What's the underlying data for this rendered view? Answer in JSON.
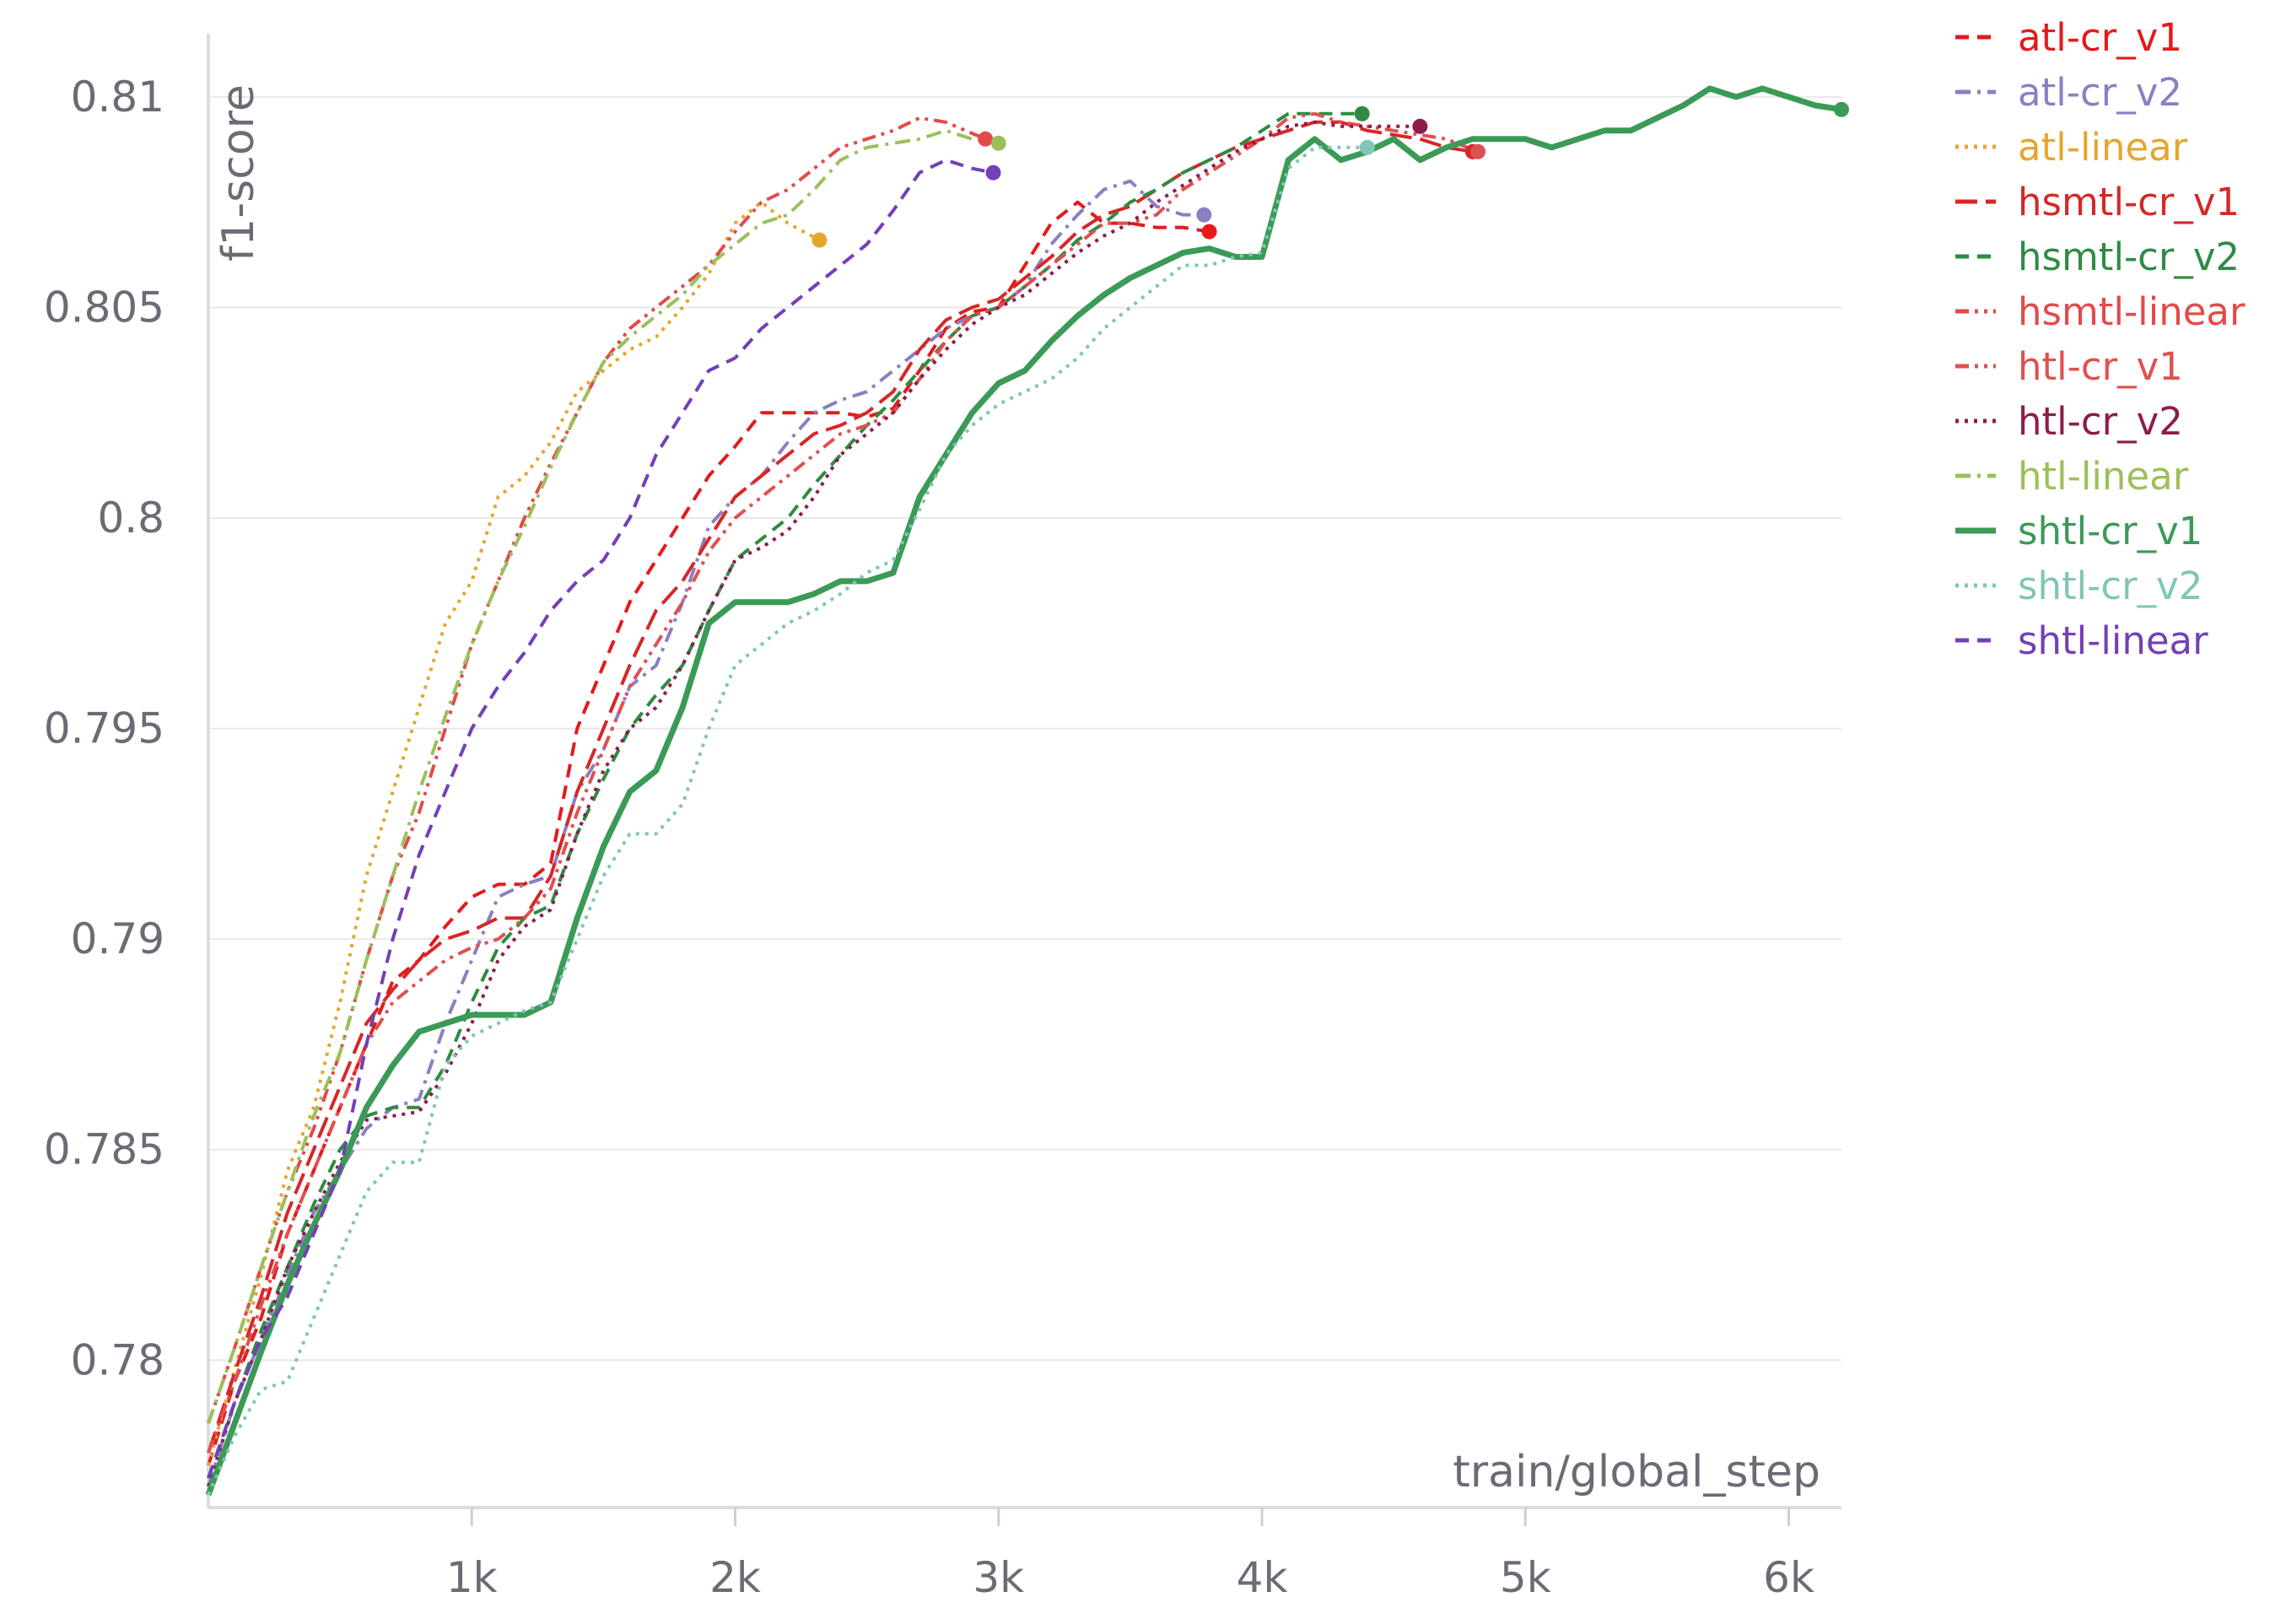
{
  "chart_data": {
    "type": "line",
    "xlabel": "train/global_step",
    "ylabel": "f1-score",
    "xlim": [
      0,
      6200
    ],
    "ylim": [
      0.7765,
      0.8115
    ],
    "grid": true,
    "legend_position": "top-right, outside plot",
    "x_ticks": [
      {
        "value": 1000,
        "label": "1k"
      },
      {
        "value": 2000,
        "label": "2k"
      },
      {
        "value": 3000,
        "label": "3k"
      },
      {
        "value": 4000,
        "label": "4k"
      },
      {
        "value": 5000,
        "label": "5k"
      },
      {
        "value": 6000,
        "label": "6k"
      }
    ],
    "y_ticks": [
      {
        "value": 0.78,
        "label": "0.78"
      },
      {
        "value": 0.785,
        "label": "0.785"
      },
      {
        "value": 0.79,
        "label": "0.79"
      },
      {
        "value": 0.795,
        "label": "0.795"
      },
      {
        "value": 0.8,
        "label": "0.8"
      },
      {
        "value": 0.805,
        "label": "0.805"
      },
      {
        "value": 0.81,
        "label": "0.81"
      }
    ],
    "series": [
      {
        "name": "atl-cr_v1",
        "color": "#e41a1c",
        "dash": "dashed",
        "x": [
          0,
          100,
          200,
          300,
          400,
          500,
          600,
          700,
          800,
          900,
          1000,
          1100,
          1200,
          1300,
          1400,
          1500,
          1600,
          1700,
          1800,
          1900,
          2000,
          2100,
          2200,
          2300,
          2400,
          2500,
          2600,
          2700,
          2800,
          2900,
          3000,
          3100,
          3200,
          3300,
          3400,
          3500,
          3600,
          3700,
          3800
        ],
        "y": [
          0.7775,
          0.7795,
          0.781,
          0.783,
          0.7845,
          0.786,
          0.7875,
          0.789,
          0.7895,
          0.7903,
          0.791,
          0.7913,
          0.7913,
          0.7918,
          0.795,
          0.7965,
          0.798,
          0.799,
          0.8,
          0.801,
          0.8017,
          0.8025,
          0.8025,
          0.8025,
          0.8025,
          0.8024,
          0.8026,
          0.8035,
          0.8045,
          0.8049,
          0.805,
          0.806,
          0.807,
          0.8075,
          0.807,
          0.807,
          0.8069,
          0.8069,
          0.8068
        ]
      },
      {
        "name": "atl-cr_v2",
        "color": "#8b7fc4",
        "dash": "dashdot",
        "x": [
          0,
          100,
          200,
          300,
          400,
          500,
          600,
          700,
          800,
          900,
          1000,
          1100,
          1200,
          1300,
          1400,
          1500,
          1600,
          1700,
          1800,
          1900,
          2000,
          2100,
          2200,
          2300,
          2400,
          2500,
          2600,
          2700,
          2800,
          2900,
          3000,
          3100,
          3200,
          3300,
          3400,
          3500,
          3600,
          3700,
          3780
        ],
        "y": [
          0.777,
          0.779,
          0.7805,
          0.782,
          0.7835,
          0.7845,
          0.7855,
          0.786,
          0.7862,
          0.788,
          0.7895,
          0.791,
          0.7913,
          0.7915,
          0.7935,
          0.7945,
          0.796,
          0.7965,
          0.798,
          0.7998,
          0.8005,
          0.801,
          0.8018,
          0.8025,
          0.8028,
          0.803,
          0.8035,
          0.804,
          0.8045,
          0.8048,
          0.805,
          0.8055,
          0.8065,
          0.8072,
          0.8078,
          0.808,
          0.8074,
          0.8072,
          0.8072
        ]
      },
      {
        "name": "atl-linear",
        "color": "#e5a62f",
        "dash": "dotted",
        "x": [
          0,
          100,
          200,
          300,
          400,
          500,
          600,
          700,
          800,
          900,
          1000,
          1100,
          1200,
          1300,
          1400,
          1500,
          1600,
          1700,
          1800,
          1900,
          2000,
          2100,
          2200,
          2320
        ],
        "y": [
          0.7775,
          0.7798,
          0.782,
          0.7845,
          0.786,
          0.7885,
          0.7915,
          0.7935,
          0.7955,
          0.7975,
          0.7985,
          0.8005,
          0.801,
          0.8018,
          0.803,
          0.8035,
          0.804,
          0.8043,
          0.805,
          0.8058,
          0.807,
          0.8075,
          0.807,
          0.8066
        ]
      },
      {
        "name": "hsmtl-cr_v1",
        "color": "#d62728",
        "dash": "longdash",
        "x": [
          0,
          100,
          200,
          300,
          400,
          500,
          600,
          700,
          800,
          900,
          1000,
          1100,
          1200,
          1300,
          1400,
          1500,
          1600,
          1700,
          1800,
          1900,
          2000,
          2100,
          2200,
          2300,
          2400,
          2500,
          2600,
          2700,
          2800,
          2900,
          3000,
          3100,
          3200,
          3300,
          3400,
          3500,
          3600,
          3700,
          3800,
          3900,
          4000,
          4100,
          4200,
          4300,
          4400,
          4500,
          4600,
          4700,
          4800
        ],
        "y": [
          0.7778,
          0.7797,
          0.7815,
          0.7835,
          0.785,
          0.7865,
          0.788,
          0.7888,
          0.7895,
          0.79,
          0.7902,
          0.7905,
          0.7905,
          0.7915,
          0.7935,
          0.795,
          0.7965,
          0.7978,
          0.7985,
          0.7995,
          0.8005,
          0.801,
          0.8015,
          0.802,
          0.8022,
          0.8025,
          0.803,
          0.804,
          0.8047,
          0.805,
          0.8052,
          0.8057,
          0.8062,
          0.8068,
          0.8072,
          0.8074,
          0.8078,
          0.8082,
          0.8085,
          0.8088,
          0.809,
          0.8092,
          0.8094,
          0.8094,
          0.8092,
          0.8091,
          0.809,
          0.8088,
          0.8087
        ]
      },
      {
        "name": "hsmtl-cr_v2",
        "color": "#2e8b43",
        "dash": "dashed",
        "x": [
          0,
          100,
          200,
          300,
          400,
          500,
          600,
          700,
          800,
          900,
          1000,
          1100,
          1200,
          1300,
          1400,
          1500,
          1600,
          1700,
          1800,
          1900,
          2000,
          2100,
          2200,
          2300,
          2400,
          2500,
          2600,
          2700,
          2800,
          2900,
          3000,
          3100,
          3200,
          3300,
          3400,
          3500,
          3600,
          3700,
          3800,
          3900,
          4000,
          4100,
          4200,
          4300,
          4380
        ],
        "y": [
          0.7772,
          0.779,
          0.7807,
          0.7822,
          0.7837,
          0.785,
          0.7858,
          0.786,
          0.786,
          0.787,
          0.7885,
          0.7898,
          0.7905,
          0.7908,
          0.7925,
          0.7938,
          0.795,
          0.7958,
          0.7965,
          0.7978,
          0.799,
          0.7995,
          0.8,
          0.8008,
          0.8015,
          0.8022,
          0.8028,
          0.8035,
          0.8042,
          0.8048,
          0.805,
          0.8055,
          0.806,
          0.8066,
          0.807,
          0.8075,
          0.8078,
          0.8082,
          0.8085,
          0.8088,
          0.8092,
          0.8096,
          0.8096,
          0.8096,
          0.8096
        ]
      },
      {
        "name": "hsmtl-linear",
        "color": "#e34a4a",
        "dash": "dashdotdot",
        "x": [
          0,
          100,
          200,
          300,
          400,
          500,
          600,
          700,
          800,
          900,
          1000,
          1100,
          1200,
          1300,
          1400,
          1500,
          1600,
          1700,
          1800,
          1900,
          2000,
          2100,
          2200,
          2300,
          2400,
          2500,
          2600,
          2700,
          2800,
          2950
        ],
        "y": [
          0.7785,
          0.7803,
          0.7822,
          0.784,
          0.7855,
          0.7873,
          0.7895,
          0.7915,
          0.793,
          0.795,
          0.797,
          0.7985,
          0.8,
          0.8013,
          0.8025,
          0.8037,
          0.8045,
          0.805,
          0.8055,
          0.806,
          0.8068,
          0.8075,
          0.8078,
          0.8083,
          0.8088,
          0.809,
          0.8092,
          0.8095,
          0.8094,
          0.809
        ]
      },
      {
        "name": "htl-cr_v1",
        "color": "#e05050",
        "dash": "dashdotdot",
        "x": [
          0,
          100,
          200,
          300,
          400,
          500,
          600,
          700,
          800,
          900,
          1000,
          1100,
          1200,
          1300,
          1400,
          1500,
          1600,
          1700,
          1800,
          1900,
          2000,
          2100,
          2200,
          2300,
          2400,
          2500,
          2600,
          2700,
          2800,
          2900,
          3000,
          3100,
          3200,
          3300,
          3400,
          3500,
          3600,
          3700,
          3800,
          3900,
          4000,
          4100,
          4200,
          4300,
          4400,
          4500,
          4600,
          4700,
          4820
        ],
        "y": [
          0.7778,
          0.7795,
          0.7813,
          0.783,
          0.7845,
          0.786,
          0.7875,
          0.7885,
          0.789,
          0.7895,
          0.7898,
          0.79,
          0.7905,
          0.7912,
          0.793,
          0.7945,
          0.796,
          0.797,
          0.798,
          0.7992,
          0.8,
          0.8005,
          0.801,
          0.8015,
          0.802,
          0.8022,
          0.8025,
          0.8033,
          0.8042,
          0.8048,
          0.805,
          0.8055,
          0.806,
          0.8065,
          0.807,
          0.807,
          0.8072,
          0.8078,
          0.8082,
          0.8086,
          0.809,
          0.8095,
          0.8096,
          0.8094,
          0.8093,
          0.8092,
          0.8091,
          0.809,
          0.8087
        ]
      },
      {
        "name": "htl-cr_v2",
        "color": "#8e1b4a",
        "dash": "dotted",
        "x": [
          0,
          100,
          200,
          300,
          400,
          500,
          600,
          700,
          800,
          900,
          1000,
          1100,
          1200,
          1300,
          1400,
          1500,
          1600,
          1700,
          1800,
          1900,
          2000,
          2100,
          2200,
          2300,
          2400,
          2500,
          2600,
          2700,
          2800,
          2900,
          3000,
          3100,
          3200,
          3300,
          3400,
          3500,
          3600,
          3700,
          3800,
          3900,
          4000,
          4100,
          4200,
          4300,
          4400,
          4500,
          4600
        ],
        "y": [
          0.777,
          0.779,
          0.7805,
          0.7822,
          0.7835,
          0.7847,
          0.7857,
          0.7858,
          0.7859,
          0.7868,
          0.788,
          0.7895,
          0.7903,
          0.7907,
          0.7925,
          0.794,
          0.795,
          0.7955,
          0.7965,
          0.7978,
          0.799,
          0.7993,
          0.7997,
          0.8005,
          0.8015,
          0.802,
          0.8025,
          0.8033,
          0.804,
          0.8046,
          0.805,
          0.8053,
          0.8058,
          0.8063,
          0.8067,
          0.807,
          0.8075,
          0.8079,
          0.8083,
          0.8087,
          0.809,
          0.8093,
          0.8094,
          0.8093,
          0.8093,
          0.8093,
          0.8093
        ]
      },
      {
        "name": "htl-linear",
        "color": "#9bc05b",
        "dash": "dashdot",
        "x": [
          0,
          100,
          200,
          300,
          400,
          500,
          600,
          700,
          800,
          900,
          1000,
          1100,
          1200,
          1300,
          1400,
          1500,
          1600,
          1700,
          1800,
          1900,
          2000,
          2100,
          2200,
          2300,
          2400,
          2500,
          2600,
          2700,
          2800,
          2900,
          3000
        ],
        "y": [
          0.7785,
          0.7803,
          0.7822,
          0.784,
          0.7858,
          0.7873,
          0.7895,
          0.7915,
          0.7935,
          0.7953,
          0.797,
          0.7985,
          0.7998,
          0.8012,
          0.8025,
          0.8037,
          0.8043,
          0.8048,
          0.8053,
          0.806,
          0.8065,
          0.807,
          0.8072,
          0.8078,
          0.8085,
          0.8088,
          0.8089,
          0.809,
          0.8092,
          0.809,
          0.8089
        ]
      },
      {
        "name": "shtl-cr_v1",
        "color": "#3b9a57",
        "dash": "solid",
        "x": [
          0,
          100,
          200,
          300,
          400,
          500,
          600,
          700,
          800,
          900,
          1000,
          1100,
          1200,
          1300,
          1400,
          1500,
          1600,
          1700,
          1800,
          1900,
          2000,
          2100,
          2200,
          2300,
          2400,
          2500,
          2600,
          2700,
          2800,
          2900,
          3000,
          3100,
          3200,
          3300,
          3400,
          3500,
          3600,
          3700,
          3800,
          3900,
          4000,
          4100,
          4200,
          4300,
          4400,
          4500,
          4600,
          4700,
          4800,
          4900,
          5000,
          5100,
          5200,
          5300,
          5400,
          5500,
          5600,
          5700,
          5800,
          5900,
          6000,
          6100,
          6200
        ],
        "y": [
          0.7768,
          0.7785,
          0.7802,
          0.7818,
          0.7832,
          0.7845,
          0.786,
          0.787,
          0.7878,
          0.788,
          0.7882,
          0.7882,
          0.7882,
          0.7885,
          0.7905,
          0.7922,
          0.7935,
          0.794,
          0.7955,
          0.7975,
          0.798,
          0.798,
          0.798,
          0.7982,
          0.7985,
          0.7985,
          0.7987,
          0.8005,
          0.8015,
          0.8025,
          0.8032,
          0.8035,
          0.8042,
          0.8048,
          0.8053,
          0.8057,
          0.806,
          0.8063,
          0.8064,
          0.8062,
          0.8062,
          0.8085,
          0.809,
          0.8085,
          0.8087,
          0.809,
          0.8085,
          0.8088,
          0.809,
          0.809,
          0.809,
          0.8088,
          0.809,
          0.8092,
          0.8092,
          0.8095,
          0.8098,
          0.8102,
          0.81,
          0.8102,
          0.81,
          0.8098,
          0.8097
        ]
      },
      {
        "name": "shtl-cr_v2",
        "color": "#7fc7b5",
        "dash": "dotted",
        "x": [
          0,
          100,
          200,
          300,
          400,
          500,
          600,
          700,
          800,
          900,
          1000,
          1100,
          1200,
          1300,
          1400,
          1500,
          1600,
          1700,
          1800,
          1900,
          2000,
          2100,
          2200,
          2300,
          2400,
          2500,
          2600,
          2700,
          2800,
          2900,
          3000,
          3100,
          3200,
          3300,
          3400,
          3500,
          3600,
          3700,
          3800,
          3900,
          4000,
          4100,
          4200,
          4300,
          4400
        ],
        "y": [
          0.7768,
          0.7782,
          0.7793,
          0.7795,
          0.781,
          0.7825,
          0.784,
          0.7847,
          0.7847,
          0.787,
          0.7877,
          0.788,
          0.7883,
          0.7885,
          0.79,
          0.7915,
          0.7925,
          0.7925,
          0.7932,
          0.795,
          0.7965,
          0.797,
          0.7975,
          0.7978,
          0.7982,
          0.7987,
          0.799,
          0.8002,
          0.8015,
          0.8022,
          0.8027,
          0.803,
          0.8033,
          0.8038,
          0.8045,
          0.805,
          0.8055,
          0.806,
          0.806,
          0.8062,
          0.8063,
          0.8083,
          0.8088,
          0.8088,
          0.8088
        ]
      },
      {
        "name": "shtl-linear",
        "color": "#7340b8",
        "dash": "dashed",
        "x": [
          0,
          100,
          200,
          300,
          400,
          500,
          600,
          700,
          800,
          900,
          1000,
          1100,
          1200,
          1300,
          1400,
          1500,
          1600,
          1700,
          1800,
          1900,
          2000,
          2100,
          2200,
          2300,
          2400,
          2500,
          2600,
          2700,
          2800,
          2900,
          2980
        ],
        "y": [
          0.7772,
          0.779,
          0.7805,
          0.7815,
          0.783,
          0.7845,
          0.7875,
          0.79,
          0.792,
          0.7935,
          0.795,
          0.796,
          0.7968,
          0.7978,
          0.7985,
          0.799,
          0.8,
          0.8015,
          0.8025,
          0.8035,
          0.8038,
          0.8045,
          0.805,
          0.8055,
          0.806,
          0.8065,
          0.8073,
          0.8082,
          0.8085,
          0.8083,
          0.8082
        ]
      }
    ]
  }
}
